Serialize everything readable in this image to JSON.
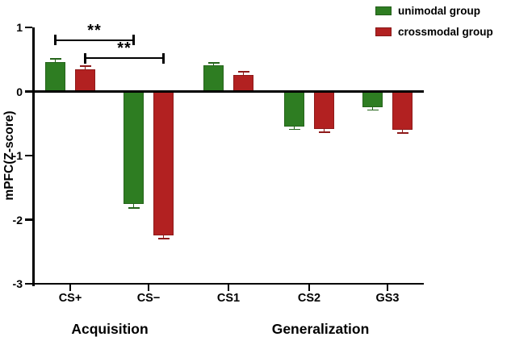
{
  "chart_data": {
    "type": "bar",
    "title": "",
    "ylabel": "mPFC(Z-score)",
    "xlabel": "",
    "ylim": [
      -3,
      1
    ],
    "yticks": [
      1,
      0,
      -1,
      -2,
      -3
    ],
    "grid": false,
    "legend_position": "top-right",
    "categories": [
      "CS+",
      "CS−",
      "CS1",
      "CS2",
      "GS3"
    ],
    "series": [
      {
        "name": "unimodal group",
        "color": "#2e7d22",
        "values": [
          0.46,
          -1.75,
          0.41,
          -0.55,
          -0.25
        ],
        "errors": [
          0.05,
          0.07,
          0.04,
          0.04,
          0.04
        ]
      },
      {
        "name": "crossmodal group",
        "color": "#b22121",
        "values": [
          0.34,
          -2.25,
          0.26,
          -0.58,
          -0.6
        ],
        "errors": [
          0.06,
          0.05,
          0.05,
          0.06,
          0.05
        ]
      }
    ],
    "group_labels": [
      {
        "label": "Acquisition",
        "categories": [
          "CS+",
          "CS−"
        ]
      },
      {
        "label": "Generalization",
        "categories": [
          "CS1",
          "CS2",
          "GS3"
        ]
      }
    ],
    "annotations": [
      {
        "type": "bracket",
        "label": "**",
        "series": "unimodal group",
        "from": "CS+",
        "to": "CS−",
        "y_value": 0.8
      },
      {
        "type": "bracket",
        "label": "**",
        "series": "crossmodal group",
        "from": "CS+",
        "to": "CS−",
        "y_value": 0.52
      }
    ]
  }
}
